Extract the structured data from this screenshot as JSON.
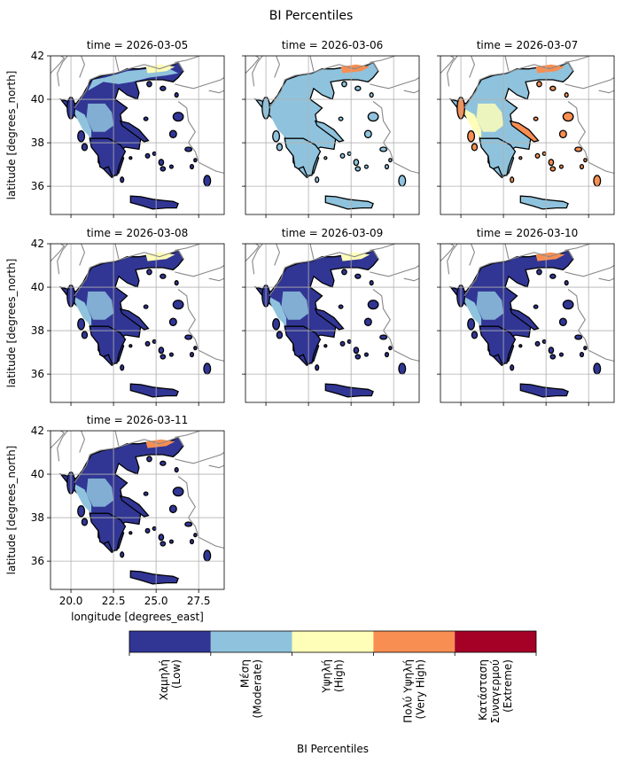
{
  "chart_data": {
    "type": "heatmap",
    "title": "BI Percentiles",
    "xlabel": "longitude [degrees_east]",
    "ylabel": "latitude [degrees_north]",
    "xlim": [
      18.8,
      29.0
    ],
    "ylim": [
      34.7,
      42.0
    ],
    "x_ticks": [
      "20.0",
      "22.5",
      "25.0",
      "27.5"
    ],
    "x_tick_values": [
      20.0,
      22.5,
      25.0,
      27.5
    ],
    "y_ticks": [
      "36",
      "38",
      "40",
      "42"
    ],
    "y_tick_values": [
      36,
      38,
      40,
      42
    ],
    "grid": true,
    "panels": [
      {
        "label": "time = 2026-03-05",
        "regions": {
          "north": "Moderate",
          "west": "Moderate",
          "central": "Low",
          "peloponnese": "Low",
          "crete": "Low",
          "islands": "Low",
          "hotspot": "High"
        }
      },
      {
        "label": "time = 2026-03-06",
        "regions": {
          "north": "Moderate",
          "west": "Moderate",
          "central": "Moderate",
          "peloponnese": "Moderate",
          "crete": "Moderate",
          "islands": "Moderate",
          "hotspot": "Very High"
        }
      },
      {
        "label": "time = 2026-03-07",
        "regions": {
          "north": "Moderate",
          "west": "High",
          "central": "Moderate",
          "peloponnese": "Moderate",
          "crete": "Moderate",
          "islands": "Very High",
          "hotspot": "Very High"
        }
      },
      {
        "label": "time = 2026-03-08",
        "regions": {
          "north": "Low",
          "west": "Moderate",
          "central": "Low",
          "peloponnese": "Low",
          "crete": "Low",
          "islands": "Low",
          "hotspot": "High"
        }
      },
      {
        "label": "time = 2026-03-09",
        "regions": {
          "north": "Low",
          "west": "Moderate",
          "central": "Low",
          "peloponnese": "Low",
          "crete": "Low",
          "islands": "Low",
          "hotspot": "High"
        }
      },
      {
        "label": "time = 2026-03-10",
        "regions": {
          "north": "Low",
          "west": "Moderate",
          "central": "Low",
          "peloponnese": "Low",
          "crete": "Low",
          "islands": "Low",
          "hotspot": "Very High"
        }
      },
      {
        "label": "time = 2026-03-11",
        "regions": {
          "north": "Low",
          "west": "Moderate",
          "central": "Low",
          "peloponnese": "Low",
          "crete": "Low",
          "islands": "Low",
          "hotspot": "Very High"
        }
      }
    ],
    "colorbar": {
      "label": "BI Percentiles",
      "categories": [
        {
          "key": "Low",
          "line1": "Χαμηλή",
          "line2": "(Low)",
          "color": "#313695"
        },
        {
          "key": "Moderate",
          "line1": "Μέση",
          "line2": "(Moderate)",
          "color": "#8fc3dd"
        },
        {
          "key": "High",
          "line1": "Υψηλή",
          "line2": "(High)",
          "color": "#fefeb8"
        },
        {
          "key": "Very High",
          "line1": "Πολύ Υψηλή",
          "line2": "(Very High)",
          "color": "#f88e52"
        },
        {
          "key": "Extreme",
          "line1": "Κατάσταση",
          "line2": "Συναγερμού",
          "line3": "(Extreme)",
          "color": "#a50026"
        }
      ]
    },
    "colors": {
      "border": "#888888",
      "grid": "#b0b0b0",
      "coast": "#000000"
    }
  }
}
